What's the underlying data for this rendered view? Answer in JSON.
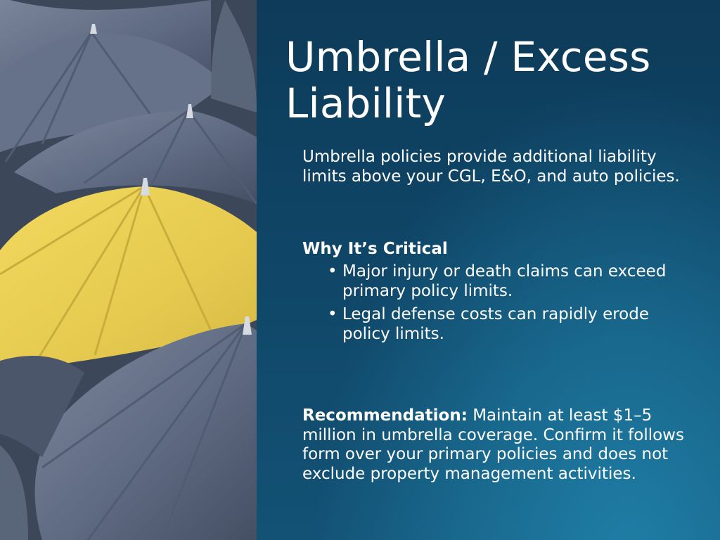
{
  "slide": {
    "title": "Umbrella / Excess Liability",
    "intro": "Umbrella policies provide additional liability limits above your CGL, E&O, and auto policies.",
    "why_heading": "Why It’s Critical",
    "bullets": [
      "Major injury or death claims can exceed primary policy limits.",
      "Legal defense costs can rapidly erode policy limits."
    ],
    "recommendation_label": "Recommendation:",
    "recommendation_text": " Maintain at least $1–5 million in umbrella coverage. Confirm it follows form over your primary policies and does not exclude property management activities."
  },
  "colors": {
    "background": "#0f4566",
    "text": "#ffffff",
    "umbrella_gray": "#66728a",
    "umbrella_yellow": "#e9cf52"
  },
  "icons": {
    "photo": "umbrellas-image"
  }
}
